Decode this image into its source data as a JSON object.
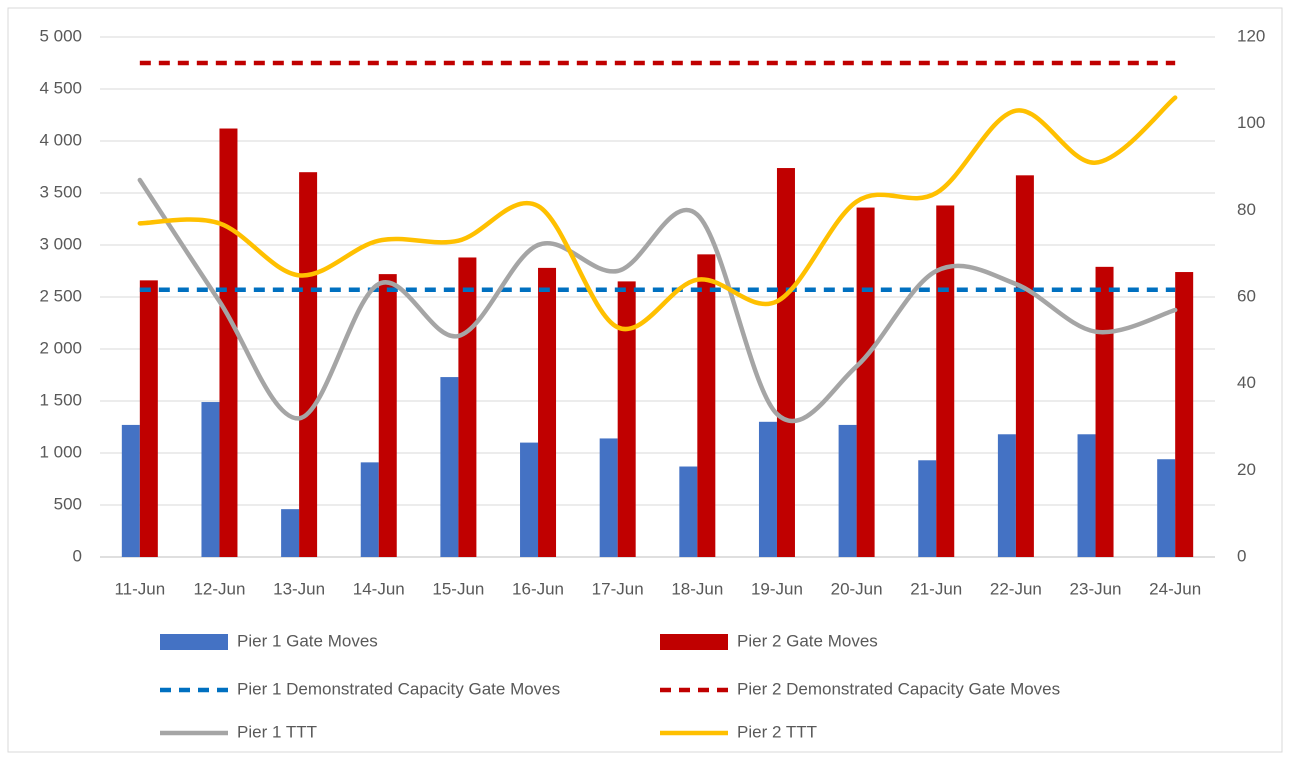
{
  "chart_data": {
    "type": "combo",
    "categories": [
      "11-Jun",
      "12-Jun",
      "13-Jun",
      "14-Jun",
      "15-Jun",
      "16-Jun",
      "17-Jun",
      "18-Jun",
      "19-Jun",
      "20-Jun",
      "21-Jun",
      "22-Jun",
      "23-Jun",
      "24-Jun"
    ],
    "ylim": [
      0,
      5000
    ],
    "yticks": [
      0,
      500,
      {
        "value": 1000,
        "label": "1 000"
      },
      {
        "value": 1500,
        "label": "1 500"
      },
      {
        "value": 2000,
        "label": "2 000"
      },
      {
        "value": 2500,
        "label": "2 500"
      },
      {
        "value": 3000,
        "label": "3 000"
      },
      {
        "value": 3500,
        "label": "3 500"
      },
      {
        "value": 4000,
        "label": "4 000"
      },
      {
        "value": 4500,
        "label": "4 500"
      },
      {
        "value": 5000,
        "label": "5 000"
      }
    ],
    "y2lim": [
      0,
      120
    ],
    "y2ticks": [
      0,
      20,
      40,
      60,
      80,
      100,
      120
    ],
    "grid": true,
    "legend": "bottom",
    "series": [
      {
        "name": "Pier 1 Gate Moves",
        "kind": "bar",
        "color": "#4472c4",
        "values": [
          1270,
          1490,
          460,
          910,
          1730,
          1100,
          1140,
          870,
          1300,
          1270,
          930,
          1180,
          1180,
          940
        ]
      },
      {
        "name": "Pier 2 Gate Moves",
        "kind": "bar",
        "color": "#c00000",
        "values": [
          2660,
          4120,
          3700,
          2720,
          2880,
          2780,
          2650,
          2910,
          3740,
          3360,
          3380,
          3670,
          2790,
          2740
        ]
      },
      {
        "name": "Pier 1 Demonstrated Capacity Gate Moves",
        "kind": "line",
        "dashed": true,
        "color": "#0070c0",
        "values": [
          2570,
          2570,
          2570,
          2570,
          2570,
          2570,
          2570,
          2570,
          2570,
          2570,
          2570,
          2570,
          2570,
          2570
        ]
      },
      {
        "name": "Pier 2 Demonstrated Capacity Gate Moves",
        "kind": "line",
        "dashed": true,
        "color": "#c00000",
        "values": [
          4750,
          4750,
          4750,
          4750,
          4750,
          4750,
          4750,
          4750,
          4750,
          4750,
          4750,
          4750,
          4750,
          4750
        ]
      },
      {
        "name": "Pier 1 TTT",
        "kind": "line",
        "smooth": true,
        "axis": "y2",
        "color": "#a5a5a5",
        "values": [
          87,
          59,
          32,
          63,
          51,
          72,
          66,
          79,
          33,
          44,
          66,
          63,
          52,
          57
        ]
      },
      {
        "name": "Pier 2 TTT",
        "kind": "line",
        "smooth": true,
        "axis": "y2",
        "color": "#ffc000",
        "values": [
          77,
          77,
          65,
          73,
          73,
          81,
          53,
          64,
          59,
          82,
          84,
          103,
          91,
          106
        ]
      }
    ]
  }
}
